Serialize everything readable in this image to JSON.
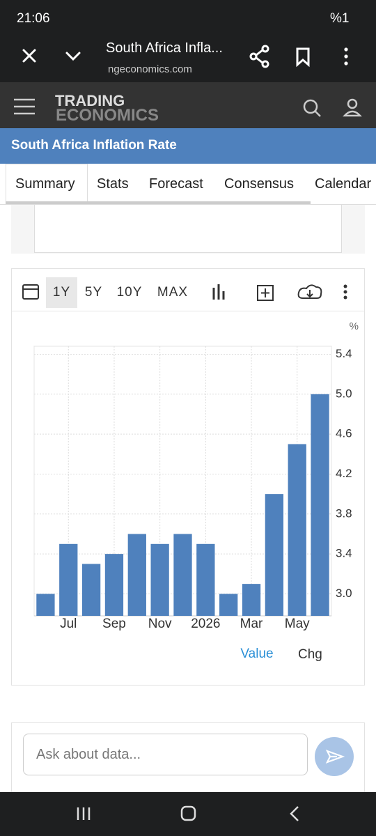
{
  "status_bar": {
    "time": "21:06",
    "battery": "%1"
  },
  "browser": {
    "title": "South Africa Infla...",
    "url": "ngeconomics.com"
  },
  "site": {
    "logo_top": "TRADING",
    "logo_bottom": "ECONOMICS",
    "page_title": "South Africa Inflation Rate"
  },
  "tabs": [
    "Summary",
    "Stats",
    "Forecast",
    "Consensus",
    "Calendar"
  ],
  "toolbar": {
    "ranges": [
      "1Y",
      "5Y",
      "10Y",
      "MAX"
    ]
  },
  "chart_data": {
    "type": "bar",
    "unit": "%",
    "categories": [
      null,
      "Jul",
      null,
      "Sep",
      null,
      "Nov",
      null,
      "2026",
      null,
      "Mar",
      null,
      "May",
      null
    ],
    "series": [
      {
        "name": "Value",
        "color": "#4f81bd",
        "values": [
          3.0,
          3.5,
          3.3,
          3.4,
          3.6,
          3.5,
          3.6,
          3.5,
          3.0,
          3.1,
          4.0,
          4.5,
          5.0
        ]
      }
    ],
    "ylim": [
      2.78,
      5.48
    ],
    "yticks": [
      {
        "value": 3.0,
        "label": "3.0"
      },
      3.4,
      3.8,
      4.2,
      4.6,
      {
        "value": 5.0,
        "label": "5.0"
      },
      5.4
    ],
    "grid": true
  },
  "chart_footer": {
    "alt_view": "Chg"
  },
  "chat": {
    "placeholder": "Ask about data..."
  }
}
